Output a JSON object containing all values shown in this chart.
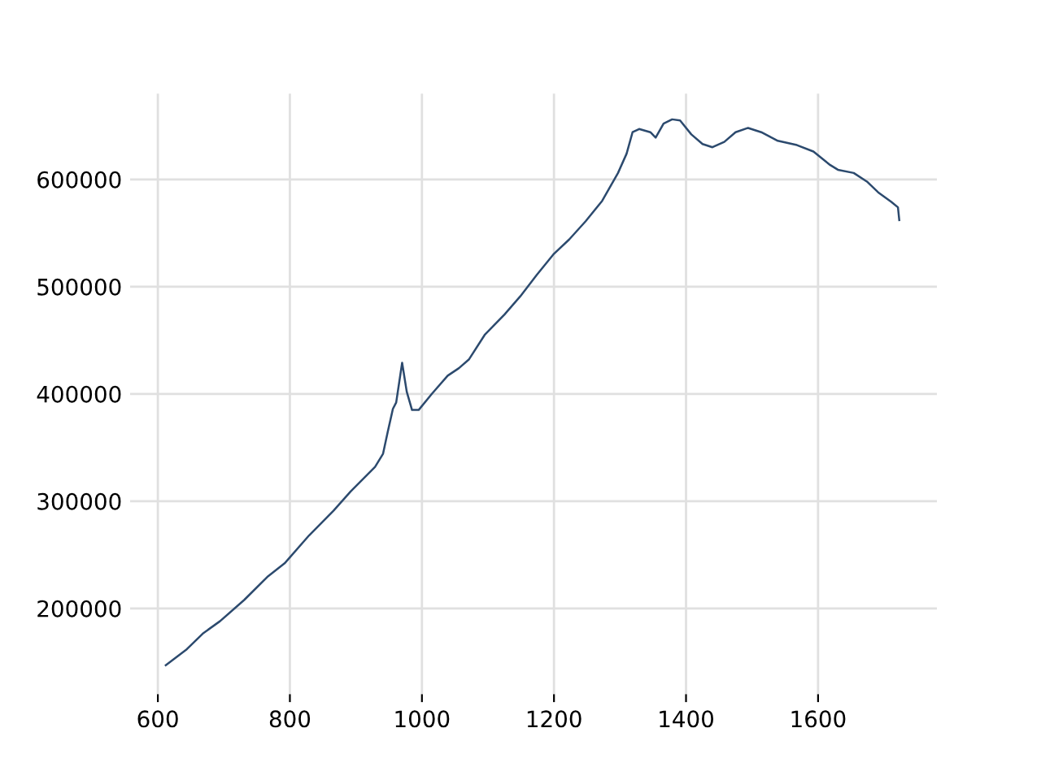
{
  "chart_data": {
    "type": "line",
    "color": "#2c4a6e",
    "x": [
      612,
      644,
      669,
      694,
      731,
      767,
      792,
      829,
      866,
      892,
      929,
      941,
      948,
      956,
      961,
      970,
      977,
      985,
      995,
      1015,
      1039,
      1056,
      1071,
      1095,
      1125,
      1149,
      1174,
      1199,
      1223,
      1248,
      1273,
      1297,
      1310,
      1319,
      1329,
      1346,
      1354,
      1366,
      1379,
      1391,
      1408,
      1425,
      1440,
      1458,
      1475,
      1494,
      1514,
      1539,
      1568,
      1593,
      1617,
      1630,
      1654,
      1674,
      1691,
      1711,
      1721,
      1723
    ],
    "values": [
      147000,
      162000,
      177000,
      188000,
      208000,
      230000,
      242000,
      268000,
      291000,
      309000,
      332000,
      344000,
      364000,
      386000,
      392000,
      429000,
      402000,
      385000,
      385000,
      400000,
      417000,
      424000,
      432000,
      455000,
      474000,
      491000,
      511000,
      530000,
      544000,
      561000,
      580000,
      606000,
      624000,
      644000,
      647000,
      644000,
      639000,
      652000,
      656000,
      655000,
      642000,
      633000,
      630000,
      635000,
      644000,
      648000,
      644000,
      636000,
      632000,
      626000,
      614000,
      609000,
      606000,
      598000,
      588000,
      579000,
      574000,
      562000
    ],
    "xlim": [
      558,
      1780
    ],
    "xticks": [
      600,
      800,
      1000,
      1200,
      1400,
      1600
    ],
    "ylim": [
      120000,
      680000
    ],
    "yticks": [
      200000,
      300000,
      400000,
      500000,
      600000
    ],
    "grid": true,
    "legend": false,
    "marker": "none",
    "line_style": "solid"
  }
}
